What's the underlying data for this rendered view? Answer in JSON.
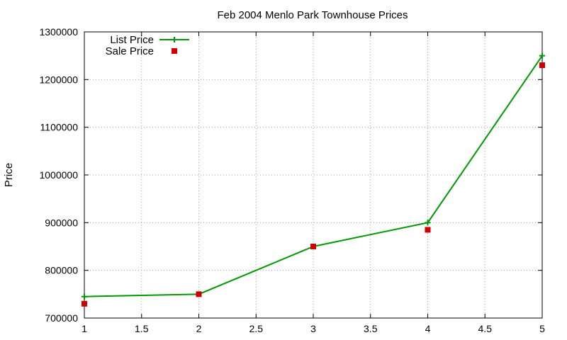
{
  "chart_data": {
    "type": "line",
    "title": "Feb 2004 Menlo Park Townhouse Prices",
    "xlabel": "",
    "ylabel": "Price",
    "xlim": [
      1,
      5
    ],
    "ylim": [
      700000,
      1300000
    ],
    "xticks": [
      1,
      1.5,
      2,
      2.5,
      3,
      3.5,
      4,
      4.5,
      5
    ],
    "xtick_labels": [
      "1",
      "1.5",
      "2",
      "2.5",
      "3",
      "3.5",
      "4",
      "4.5",
      "5"
    ],
    "yticks": [
      700000,
      800000,
      900000,
      1000000,
      1100000,
      1200000,
      1300000
    ],
    "ytick_labels": [
      "700000",
      "800000",
      "900000",
      "1000000",
      "1100000",
      "1200000",
      "1300000"
    ],
    "grid": true,
    "legend_position": "top-left",
    "series": [
      {
        "name": "List Price",
        "style": "line+cross",
        "color": "#009900",
        "x": [
          1,
          2,
          3,
          4,
          5
        ],
        "y": [
          745000,
          750000,
          850000,
          900000,
          1250000
        ]
      },
      {
        "name": "Sale Price",
        "style": "square",
        "color": "#cc0000",
        "x": [
          1,
          2,
          3,
          4,
          5
        ],
        "y": [
          730000,
          750000,
          850000,
          885000,
          1230000
        ]
      }
    ]
  }
}
